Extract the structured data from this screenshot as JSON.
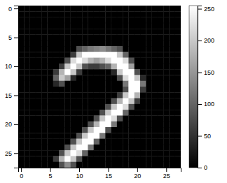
{
  "chart_data": {
    "type": "heatmap",
    "z": [
      [
        0,
        0,
        0,
        0,
        0,
        0,
        0,
        0,
        0,
        0,
        0,
        0,
        0,
        0,
        0,
        0,
        0,
        0,
        0,
        0,
        0,
        0,
        0,
        0,
        0,
        0,
        0,
        0
      ],
      [
        0,
        0,
        0,
        0,
        0,
        0,
        0,
        0,
        0,
        0,
        0,
        0,
        0,
        0,
        0,
        0,
        0,
        0,
        0,
        0,
        0,
        0,
        0,
        0,
        0,
        0,
        0,
        0
      ],
      [
        0,
        0,
        0,
        0,
        0,
        0,
        0,
        0,
        0,
        0,
        0,
        0,
        0,
        0,
        0,
        0,
        0,
        0,
        0,
        0,
        0,
        0,
        0,
        0,
        0,
        0,
        0,
        0
      ],
      [
        0,
        0,
        0,
        0,
        0,
        0,
        0,
        0,
        0,
        0,
        0,
        0,
        0,
        0,
        0,
        0,
        0,
        0,
        0,
        0,
        0,
        0,
        0,
        0,
        0,
        0,
        0,
        0
      ],
      [
        0,
        0,
        0,
        0,
        0,
        0,
        0,
        0,
        0,
        0,
        0,
        0,
        0,
        0,
        0,
        0,
        0,
        0,
        0,
        0,
        0,
        0,
        0,
        0,
        0,
        0,
        0,
        0
      ],
      [
        0,
        0,
        0,
        0,
        0,
        0,
        0,
        0,
        0,
        0,
        0,
        0,
        0,
        0,
        0,
        0,
        0,
        0,
        0,
        0,
        0,
        0,
        0,
        0,
        0,
        0,
        0,
        0
      ],
      [
        0,
        0,
        0,
        0,
        0,
        0,
        0,
        0,
        0,
        0,
        0,
        0,
        0,
        0,
        0,
        0,
        0,
        0,
        0,
        0,
        0,
        0,
        0,
        0,
        0,
        0,
        0,
        0
      ],
      [
        0,
        0,
        0,
        0,
        0,
        0,
        0,
        0,
        0,
        0,
        80,
        100,
        120,
        130,
        140,
        120,
        100,
        80,
        0,
        0,
        0,
        0,
        0,
        0,
        0,
        0,
        0,
        0
      ],
      [
        0,
        0,
        0,
        0,
        0,
        0,
        0,
        0,
        0,
        60,
        200,
        255,
        255,
        255,
        255,
        255,
        255,
        200,
        100,
        0,
        0,
        0,
        0,
        0,
        0,
        0,
        0,
        0
      ],
      [
        0,
        0,
        0,
        0,
        0,
        0,
        0,
        0,
        80,
        220,
        255,
        220,
        180,
        160,
        180,
        220,
        255,
        255,
        220,
        80,
        0,
        0,
        0,
        0,
        0,
        0,
        0,
        0
      ],
      [
        0,
        0,
        0,
        0,
        0,
        0,
        0,
        60,
        200,
        255,
        200,
        80,
        60,
        60,
        80,
        100,
        180,
        255,
        255,
        160,
        0,
        0,
        0,
        0,
        0,
        0,
        0,
        0
      ],
      [
        0,
        0,
        0,
        0,
        0,
        0,
        60,
        180,
        255,
        200,
        60,
        0,
        0,
        0,
        0,
        0,
        40,
        200,
        255,
        255,
        80,
        0,
        0,
        0,
        0,
        0,
        0,
        0
      ],
      [
        0,
        0,
        0,
        0,
        0,
        0,
        100,
        200,
        160,
        40,
        0,
        0,
        0,
        0,
        0,
        0,
        0,
        80,
        220,
        255,
        200,
        40,
        0,
        0,
        0,
        0,
        0,
        0
      ],
      [
        0,
        0,
        0,
        0,
        0,
        0,
        40,
        80,
        0,
        0,
        0,
        0,
        0,
        0,
        0,
        0,
        0,
        0,
        120,
        255,
        255,
        120,
        0,
        0,
        0,
        0,
        0,
        0
      ],
      [
        0,
        0,
        0,
        0,
        0,
        0,
        0,
        0,
        0,
        0,
        0,
        0,
        0,
        0,
        0,
        0,
        0,
        0,
        80,
        255,
        255,
        60,
        0,
        0,
        0,
        0,
        0,
        0
      ],
      [
        0,
        0,
        0,
        0,
        0,
        0,
        0,
        0,
        0,
        0,
        0,
        0,
        0,
        0,
        0,
        0,
        0,
        60,
        200,
        255,
        180,
        0,
        0,
        0,
        0,
        0,
        0,
        0
      ],
      [
        0,
        0,
        0,
        0,
        0,
        0,
        0,
        0,
        0,
        0,
        0,
        0,
        0,
        0,
        0,
        0,
        80,
        180,
        255,
        200,
        60,
        0,
        0,
        0,
        0,
        0,
        0,
        0
      ],
      [
        0,
        0,
        0,
        0,
        0,
        0,
        0,
        0,
        0,
        0,
        0,
        0,
        0,
        0,
        0,
        80,
        200,
        255,
        220,
        80,
        0,
        0,
        0,
        0,
        0,
        0,
        0,
        0
      ],
      [
        0,
        0,
        0,
        0,
        0,
        0,
        0,
        0,
        0,
        0,
        0,
        0,
        0,
        0,
        80,
        200,
        255,
        255,
        100,
        0,
        0,
        0,
        0,
        0,
        0,
        0,
        0,
        0
      ],
      [
        0,
        0,
        0,
        0,
        0,
        0,
        0,
        0,
        0,
        0,
        0,
        0,
        0,
        80,
        200,
        255,
        220,
        80,
        0,
        0,
        0,
        0,
        0,
        0,
        0,
        0,
        0,
        0
      ],
      [
        0,
        0,
        0,
        0,
        0,
        0,
        0,
        0,
        0,
        0,
        0,
        0,
        80,
        180,
        255,
        255,
        120,
        0,
        0,
        0,
        0,
        0,
        0,
        0,
        0,
        0,
        0,
        0
      ],
      [
        0,
        0,
        0,
        0,
        0,
        0,
        0,
        0,
        0,
        0,
        0,
        80,
        200,
        255,
        255,
        80,
        0,
        0,
        0,
        0,
        0,
        0,
        0,
        0,
        0,
        0,
        0,
        0
      ],
      [
        0,
        0,
        0,
        0,
        0,
        0,
        0,
        0,
        0,
        0,
        80,
        200,
        255,
        255,
        120,
        0,
        0,
        0,
        0,
        0,
        0,
        0,
        0,
        0,
        0,
        0,
        0,
        0
      ],
      [
        0,
        0,
        0,
        0,
        0,
        0,
        0,
        0,
        0,
        80,
        200,
        255,
        255,
        100,
        0,
        0,
        0,
        0,
        0,
        0,
        0,
        0,
        0,
        0,
        0,
        0,
        0,
        0
      ],
      [
        0,
        0,
        0,
        0,
        0,
        0,
        0,
        0,
        80,
        200,
        255,
        255,
        120,
        0,
        0,
        0,
        0,
        0,
        0,
        0,
        0,
        0,
        0,
        0,
        0,
        0,
        0,
        0
      ],
      [
        0,
        0,
        0,
        0,
        0,
        0,
        0,
        80,
        200,
        255,
        220,
        100,
        0,
        0,
        0,
        0,
        0,
        0,
        0,
        0,
        0,
        0,
        0,
        0,
        0,
        0,
        0,
        0
      ],
      [
        0,
        0,
        0,
        0,
        0,
        0,
        60,
        180,
        255,
        200,
        80,
        0,
        0,
        0,
        0,
        0,
        0,
        0,
        0,
        0,
        0,
        0,
        0,
        0,
        0,
        0,
        0,
        0
      ],
      [
        0,
        0,
        0,
        0,
        0,
        0,
        0,
        80,
        140,
        80,
        0,
        0,
        0,
        0,
        0,
        0,
        0,
        0,
        0,
        0,
        0,
        0,
        0,
        0,
        0,
        0,
        0,
        0
      ]
    ],
    "zlim": [
      0,
      255
    ],
    "zticks": [
      0,
      50,
      100,
      150,
      200,
      250
    ],
    "xlim": [
      -0.5,
      27.5
    ],
    "ylim": [
      27.5,
      -0.5
    ],
    "xticks": [
      0,
      5,
      10,
      15,
      20,
      25
    ],
    "yticks": [
      0,
      5,
      10,
      15,
      20,
      25
    ]
  }
}
